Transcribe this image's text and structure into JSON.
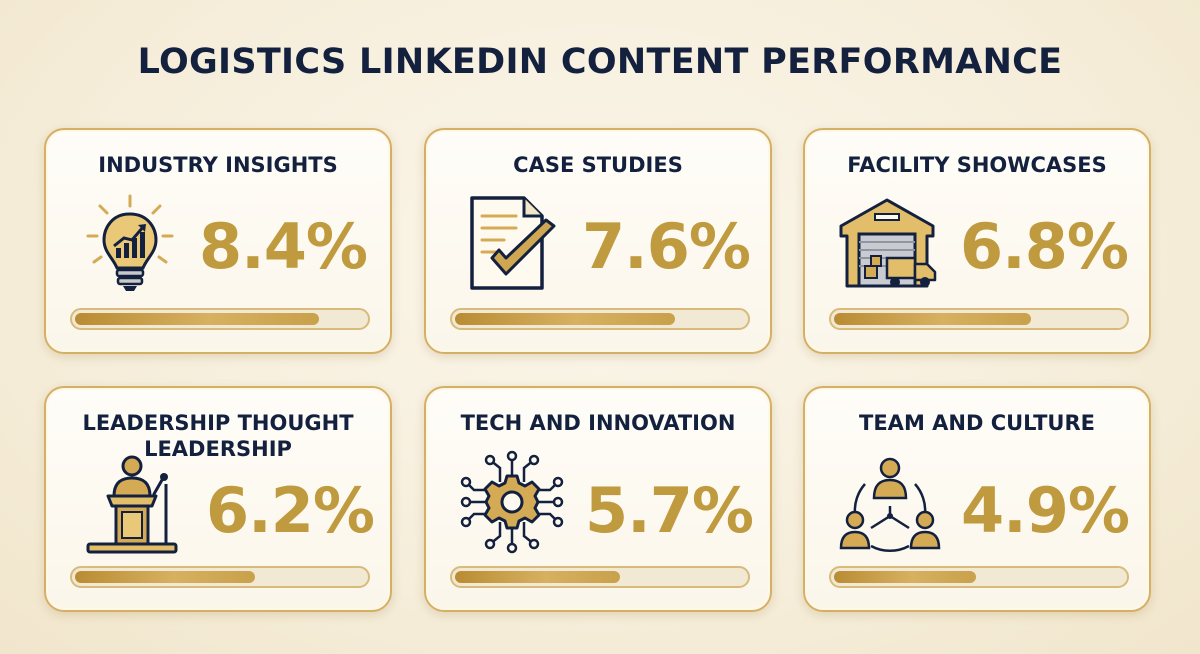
{
  "title": "LOGISTICS LINKEDIN CONTENT PERFORMANCE",
  "colors": {
    "navy": "#13213f",
    "gold": "#bf9a3e",
    "border": "#d4b065",
    "track": "#f2e9d5"
  },
  "chart_data": {
    "type": "bar",
    "title": "LOGISTICS LINKEDIN CONTENT PERFORMANCE",
    "categories": [
      "INDUSTRY INSIGHTS",
      "CASE STUDIES",
      "FACILITY SHOWCASES",
      "LEADERSHIP THOUGHT LEADERSHIP",
      "TECH AND INNOVATION",
      "TEAM AND CULTURE"
    ],
    "values": [
      8.4,
      7.6,
      6.8,
      6.2,
      5.7,
      4.9
    ],
    "value_labels": [
      "8.4%",
      "7.6%",
      "6.8%",
      "6.2%",
      "5.7%",
      "4.9%"
    ],
    "bar_max": 10,
    "icons": [
      "lightbulb-chart-icon",
      "document-check-icon",
      "warehouse-truck-icon",
      "podium-speaker-icon",
      "gear-circuit-icon",
      "team-network-icon"
    ]
  }
}
